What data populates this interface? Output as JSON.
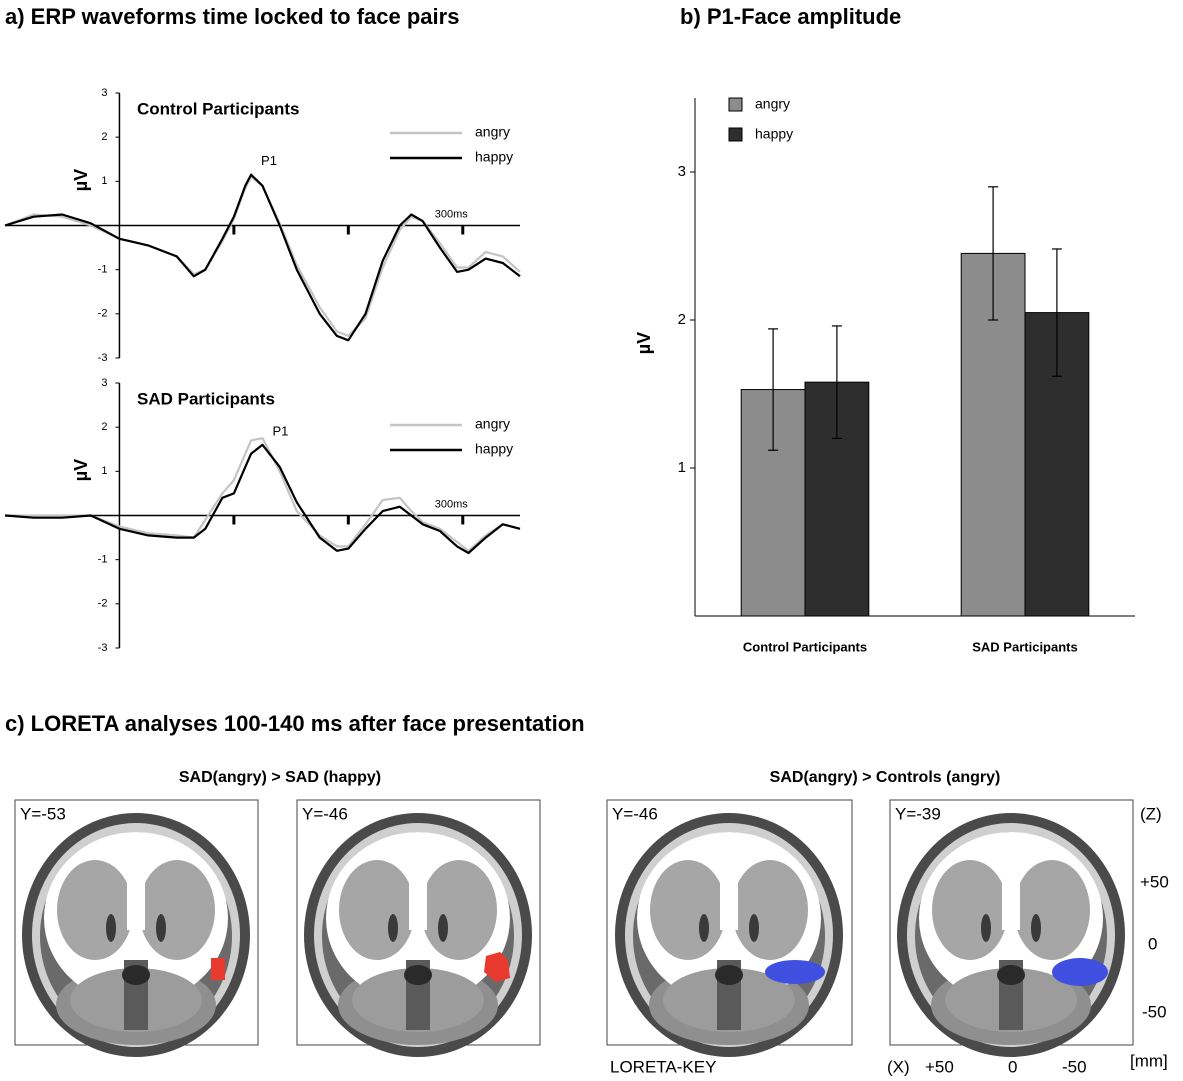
{
  "chart_data": [
    {
      "type": "line",
      "title": "a) ERP waveforms time locked to face pairs",
      "subtitle": "Control Participants",
      "y_label": "µV",
      "x": [
        -100,
        -75,
        -50,
        -25,
        0,
        25,
        50,
        65,
        75,
        90,
        100,
        110,
        115,
        125,
        140,
        155,
        175,
        190,
        200,
        215,
        230,
        245,
        255,
        265,
        280,
        295,
        305,
        320,
        335,
        350
      ],
      "xlim": [
        -100,
        350
      ],
      "xticks": [
        {
          "value": 100,
          "label": null
        },
        {
          "value": 200,
          "label": null
        },
        {
          "value": 300,
          "label": "300ms"
        }
      ],
      "ylim": [
        -3,
        3
      ],
      "yticks": [
        -3,
        -2,
        -1,
        1,
        2,
        3
      ],
      "annotations": [
        "P1"
      ],
      "series": [
        {
          "name": "angry",
          "color": "#c4c4c4",
          "values": [
            0,
            0.25,
            0.2,
            0.0,
            -0.3,
            -0.45,
            -0.7,
            -1.1,
            -1.0,
            -0.35,
            0.15,
            0.85,
            1.1,
            0.9,
            0.05,
            -0.9,
            -1.85,
            -2.4,
            -2.5,
            -2.1,
            -0.95,
            -0.1,
            0.2,
            0.1,
            -0.4,
            -0.95,
            -0.95,
            -0.6,
            -0.7,
            -1.05
          ]
        },
        {
          "name": "happy",
          "color": "#000000",
          "values": [
            0,
            0.2,
            0.25,
            0.05,
            -0.3,
            -0.45,
            -0.7,
            -1.15,
            -1.0,
            -0.3,
            0.2,
            0.9,
            1.15,
            0.9,
            0,
            -1.0,
            -2.0,
            -2.5,
            -2.6,
            -2.0,
            -0.8,
            0,
            0.25,
            0.1,
            -0.5,
            -1.05,
            -1.0,
            -0.75,
            -0.85,
            -1.15
          ]
        }
      ]
    },
    {
      "type": "line",
      "subtitle": "SAD Participants",
      "y_label": "µV",
      "x": [
        -100,
        -75,
        -50,
        -25,
        0,
        25,
        50,
        65,
        75,
        90,
        100,
        110,
        115,
        125,
        140,
        155,
        175,
        190,
        200,
        215,
        230,
        245,
        255,
        265,
        280,
        295,
        305,
        320,
        335,
        350
      ],
      "xlim": [
        -100,
        350
      ],
      "xticks": [
        {
          "value": 100,
          "label": null
        },
        {
          "value": 200,
          "label": null
        },
        {
          "value": 300,
          "label": "300ms"
        }
      ],
      "ylim": [
        -3,
        3
      ],
      "yticks": [
        -3,
        -2,
        -1,
        1,
        2,
        3
      ],
      "annotations": [
        "P1"
      ],
      "series": [
        {
          "name": "angry",
          "color": "#c4c4c4",
          "values": [
            0,
            0,
            0,
            0,
            -0.25,
            -0.4,
            -0.45,
            -0.5,
            -0.1,
            0.5,
            0.8,
            1.4,
            1.7,
            1.75,
            1.0,
            0.1,
            -0.45,
            -0.7,
            -0.7,
            -0.2,
            0.35,
            0.4,
            0.1,
            -0.15,
            -0.3,
            -0.6,
            -0.8,
            -0.45,
            -0.2,
            -0.3
          ]
        },
        {
          "name": "happy",
          "color": "#000000",
          "values": [
            0,
            -0.05,
            -0.05,
            0,
            -0.3,
            -0.45,
            -0.5,
            -0.5,
            -0.3,
            0.4,
            0.5,
            1.1,
            1.4,
            1.6,
            1.1,
            0.3,
            -0.5,
            -0.8,
            -0.75,
            -0.3,
            0.1,
            0.2,
            0.0,
            -0.2,
            -0.35,
            -0.7,
            -0.85,
            -0.5,
            -0.2,
            -0.3
          ]
        }
      ]
    },
    {
      "type": "bar",
      "title": "b) P1-Face amplitude",
      "y_label": "µV",
      "categories": [
        "Control Participants",
        "SAD Participants"
      ],
      "ylim": [
        0,
        3.5
      ],
      "yticks": [
        1,
        2,
        3
      ],
      "series": [
        {
          "name": "angry",
          "color": "#8c8c8c",
          "values": [
            1.53,
            2.45
          ],
          "errors": [
            0.41,
            0.45
          ]
        },
        {
          "name": "happy",
          "color": "#2e2e2e",
          "values": [
            1.58,
            2.05
          ],
          "errors": [
            0.38,
            0.43
          ]
        }
      ]
    }
  ],
  "loreta": {
    "title": "c) LORETA analyses 100-140 ms after face presentation",
    "comparisons": [
      {
        "title": "SAD(angry) > SAD (happy)",
        "slices": [
          "Y=-53",
          "Y=-46"
        ]
      },
      {
        "title": "SAD(angry) > Controls (angry)",
        "slices": [
          "Y=-46",
          "Y=-39"
        ]
      }
    ],
    "key": {
      "label": "LORETA-KEY",
      "z_axis": {
        "label": "(Z)",
        "ticks": [
          "+50",
          "0",
          "-50"
        ]
      },
      "x_axis": {
        "label": "(X)",
        "ticks": [
          "+50",
          "0",
          "-50"
        ]
      },
      "unit": "[mm]"
    }
  }
}
